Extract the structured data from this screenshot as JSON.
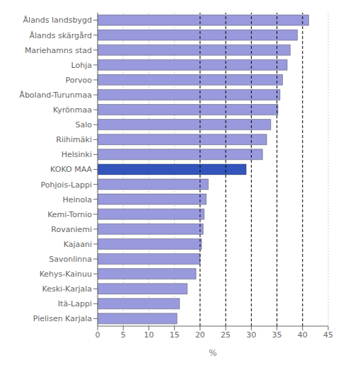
{
  "chart_data": {
    "type": "bar",
    "orientation": "horizontal",
    "x_label": "%",
    "categories": [
      "Pielisen Karjala",
      "Itä-Lappi",
      "Keski-Karjala",
      "Kehys-Kainuu",
      "Savonlinna",
      "Kajaani",
      "Rovaniemi",
      "Kemi-Tornio",
      "Heinola",
      "Pohjois-Lappi",
      "KOKO MAA",
      "Helsinki",
      "Riihimäki",
      "Salo",
      "Kyrönmaa",
      "Åboland-Turunmaa",
      "Porvoo",
      "Lohja",
      "Mariehamns stad",
      "Ålands skärgård",
      "Ålands landsbygd"
    ],
    "values": [
      15.5,
      16.0,
      17.5,
      19.2,
      20.0,
      20.3,
      20.6,
      20.8,
      21.2,
      21.6,
      29.0,
      32.2,
      33.0,
      33.8,
      35.2,
      35.6,
      36.1,
      37.0,
      37.6,
      39.0,
      41.2
    ],
    "colors": [
      "#9999dd",
      "#9999dd",
      "#9999dd",
      "#9999dd",
      "#9999dd",
      "#9999dd",
      "#9999dd",
      "#9999dd",
      "#9999dd",
      "#9999dd",
      "#3355bb",
      "#9999dd",
      "#9999dd",
      "#9999dd",
      "#9999dd",
      "#9999dd",
      "#9999dd",
      "#9999dd",
      "#9999dd",
      "#9999dd",
      "#9999dd"
    ],
    "xlim": [
      0,
      45
    ],
    "xticks": [
      0,
      5,
      10,
      15,
      20,
      25,
      30,
      35,
      40,
      45
    ],
    "reference_lines": [
      20,
      25,
      30,
      35,
      40
    ],
    "line_style": "dashed",
    "grid": true
  }
}
